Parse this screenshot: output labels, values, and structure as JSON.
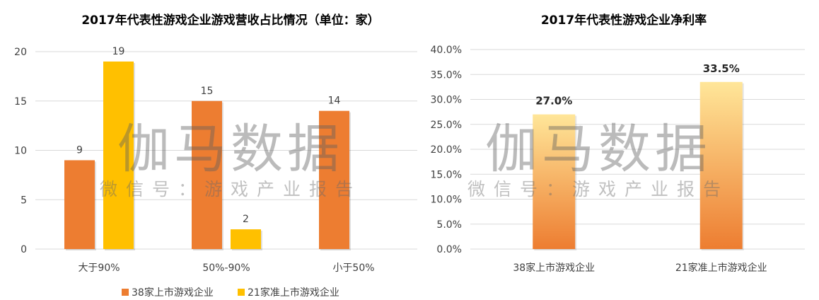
{
  "chart_data": [
    {
      "type": "bar",
      "title": "2017年代表性游戏企业游戏营收占比情况（单位：家）",
      "categories": [
        "大于90%",
        "50%-90%",
        "小于50%"
      ],
      "series": [
        {
          "name": "38家上市游戏企业",
          "values": [
            9,
            15,
            14
          ],
          "labels": [
            "9",
            "15",
            "14"
          ],
          "color": "#ED7D31"
        },
        {
          "name": "21家准上市游戏企业",
          "values": [
            19,
            2,
            null
          ],
          "labels": [
            "19",
            "2",
            ""
          ],
          "color": "#FFC000"
        }
      ],
      "ylim": [
        0,
        20
      ],
      "yticks": [
        0,
        5,
        10,
        15,
        20
      ],
      "ytick_labels": [
        "0",
        "5",
        "10",
        "15",
        "20"
      ],
      "grid": true,
      "legend": "bottom"
    },
    {
      "type": "bar",
      "title": "2017年代表性游戏企业净利率",
      "categories": [
        "38家上市游戏企业",
        "21家准上市游戏企业"
      ],
      "values": [
        0.27,
        0.335
      ],
      "value_labels": [
        "27.0%",
        "33.5%"
      ],
      "ylim": [
        0,
        0.4
      ],
      "yticks": [
        0,
        0.05,
        0.1,
        0.15,
        0.2,
        0.25,
        0.3,
        0.35,
        0.4
      ],
      "ytick_labels": [
        "0.0%",
        "5.0%",
        "10.0%",
        "15.0%",
        "20.0%",
        "25.0%",
        "30.0%",
        "35.0%",
        "40.0%"
      ],
      "gradient": [
        "#FFE699",
        "#ED7D31"
      ],
      "grid": true
    }
  ],
  "watermark": {
    "brand": "伽马数据",
    "subtitle": "微信号：游戏产业报告"
  }
}
